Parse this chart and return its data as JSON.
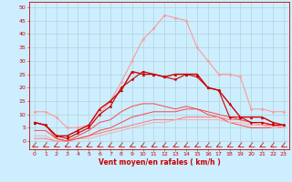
{
  "bg_color": "#cceeff",
  "grid_color": "#aacccc",
  "xlabel": "Vent moyen/en rafales ( km/h )",
  "xlabel_color": "#cc0000",
  "xlabel_fontsize": 5.5,
  "xticks": [
    0,
    1,
    2,
    3,
    4,
    5,
    6,
    7,
    8,
    9,
    10,
    11,
    12,
    13,
    14,
    15,
    16,
    17,
    18,
    19,
    20,
    21,
    22,
    23
  ],
  "yticks": [
    0,
    5,
    10,
    15,
    20,
    25,
    30,
    35,
    40,
    45,
    50
  ],
  "ylim": [
    -3,
    52
  ],
  "xlim": [
    -0.5,
    23.5
  ],
  "lines": [
    {
      "x": [
        0,
        1,
        2,
        3,
        4,
        5,
        6,
        7,
        8,
        9,
        10,
        11,
        12,
        13,
        14,
        15,
        16,
        17,
        18,
        19,
        20,
        21,
        22,
        23
      ],
      "y": [
        7,
        6,
        2,
        1,
        3,
        5,
        10,
        13,
        20,
        23,
        26,
        25,
        24,
        23,
        25,
        24,
        20,
        19,
        9,
        9,
        7,
        7,
        6,
        6
      ],
      "color": "#cc0000",
      "lw": 0.8,
      "marker": "D",
      "ms": 1.5,
      "zorder": 5
    },
    {
      "x": [
        0,
        1,
        2,
        3,
        4,
        5,
        6,
        7,
        8,
        9,
        10,
        11,
        12,
        13,
        14,
        15,
        16,
        17,
        18,
        19,
        20,
        21,
        22,
        23
      ],
      "y": [
        7,
        6,
        2,
        2,
        4,
        6,
        12,
        15,
        19,
        26,
        25,
        25,
        24,
        25,
        25,
        25,
        20,
        19,
        14,
        9,
        9,
        9,
        7,
        6
      ],
      "color": "#cc0000",
      "lw": 1.0,
      "marker": "^",
      "ms": 2.0,
      "zorder": 5
    },
    {
      "x": [
        0,
        1,
        2,
        3,
        4,
        5,
        6,
        7,
        8,
        9,
        10,
        11,
        12,
        13,
        14,
        15,
        16,
        17,
        18,
        19,
        20,
        21,
        22,
        23
      ],
      "y": [
        11,
        11,
        9,
        5,
        5,
        6,
        10,
        15,
        22,
        30,
        38,
        42,
        47,
        46,
        45,
        35,
        30,
        25,
        25,
        24,
        12,
        12,
        11,
        11
      ],
      "color": "#ff9999",
      "lw": 0.8,
      "marker": "D",
      "ms": 1.5,
      "zorder": 4
    },
    {
      "x": [
        0,
        1,
        2,
        3,
        4,
        5,
        6,
        7,
        8,
        9,
        10,
        11,
        12,
        13,
        14,
        15,
        16,
        17,
        18,
        19,
        20,
        21,
        22,
        23
      ],
      "y": [
        7,
        6,
        1,
        0,
        2,
        4,
        7,
        8,
        11,
        13,
        14,
        14,
        13,
        12,
        13,
        12,
        10,
        9,
        7,
        6,
        5,
        5,
        5,
        5
      ],
      "color": "#ff4444",
      "lw": 0.7,
      "marker": null,
      "ms": 0,
      "zorder": 3
    },
    {
      "x": [
        0,
        1,
        2,
        3,
        4,
        5,
        6,
        7,
        8,
        9,
        10,
        11,
        12,
        13,
        14,
        15,
        16,
        17,
        18,
        19,
        20,
        21,
        22,
        23
      ],
      "y": [
        1,
        1,
        0,
        0,
        1,
        2,
        3,
        4,
        5,
        6,
        7,
        8,
        8,
        8,
        9,
        9,
        9,
        9,
        8,
        8,
        7,
        6,
        6,
        5
      ],
      "color": "#ff7777",
      "lw": 0.7,
      "marker": null,
      "ms": 0,
      "zorder": 3
    },
    {
      "x": [
        0,
        1,
        2,
        3,
        4,
        5,
        6,
        7,
        8,
        9,
        10,
        11,
        12,
        13,
        14,
        15,
        16,
        17,
        18,
        19,
        20,
        21,
        22,
        23
      ],
      "y": [
        2,
        2,
        0,
        0,
        1,
        1,
        2,
        3,
        4,
        5,
        6,
        7,
        7,
        8,
        8,
        8,
        8,
        8,
        7,
        7,
        6,
        6,
        5,
        5
      ],
      "color": "#ffaaaa",
      "lw": 0.7,
      "marker": null,
      "ms": 0,
      "zorder": 3
    },
    {
      "x": [
        0,
        1,
        2,
        3,
        4,
        5,
        6,
        7,
        8,
        9,
        10,
        11,
        12,
        13,
        14,
        15,
        16,
        17,
        18,
        19,
        20,
        21,
        22,
        23
      ],
      "y": [
        4,
        4,
        1,
        0,
        1,
        2,
        4,
        5,
        7,
        9,
        10,
        11,
        11,
        11,
        12,
        12,
        11,
        10,
        9,
        8,
        7,
        7,
        6,
        6
      ],
      "color": "#ff4444",
      "lw": 0.7,
      "marker": null,
      "ms": 0,
      "zorder": 3
    }
  ],
  "tick_color": "#cc0000",
  "tick_fontsize": 4.5,
  "arrow_color": "#cc0000"
}
